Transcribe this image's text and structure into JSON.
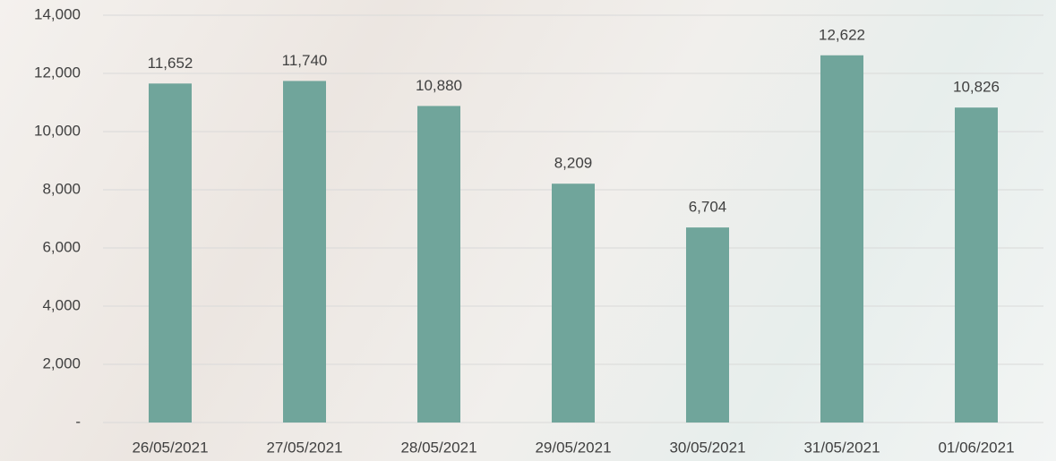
{
  "chart_data": {
    "type": "bar",
    "categories": [
      "26/05/2021",
      "27/05/2021",
      "28/05/2021",
      "29/05/2021",
      "30/05/2021",
      "31/05/2021",
      "01/06/2021"
    ],
    "values": [
      11652,
      11740,
      10880,
      8209,
      6704,
      12622,
      10826
    ],
    "value_labels": [
      "11,652",
      "11,740",
      "10,880",
      "8,209",
      "6,704",
      "12,622",
      "10,826"
    ],
    "color": "#70a59b",
    "ylim": [
      0,
      14000
    ],
    "yticks": [
      {
        "value": 0,
        "label": "-"
      },
      {
        "value": 2000,
        "label": "2,000"
      },
      {
        "value": 4000,
        "label": "4,000"
      },
      {
        "value": 6000,
        "label": "6,000"
      },
      {
        "value": 8000,
        "label": "8,000"
      },
      {
        "value": 10000,
        "label": "10,000"
      },
      {
        "value": 12000,
        "label": "12,000"
      },
      {
        "value": 14000,
        "label": "14,000"
      }
    ],
    "grid": true
  }
}
